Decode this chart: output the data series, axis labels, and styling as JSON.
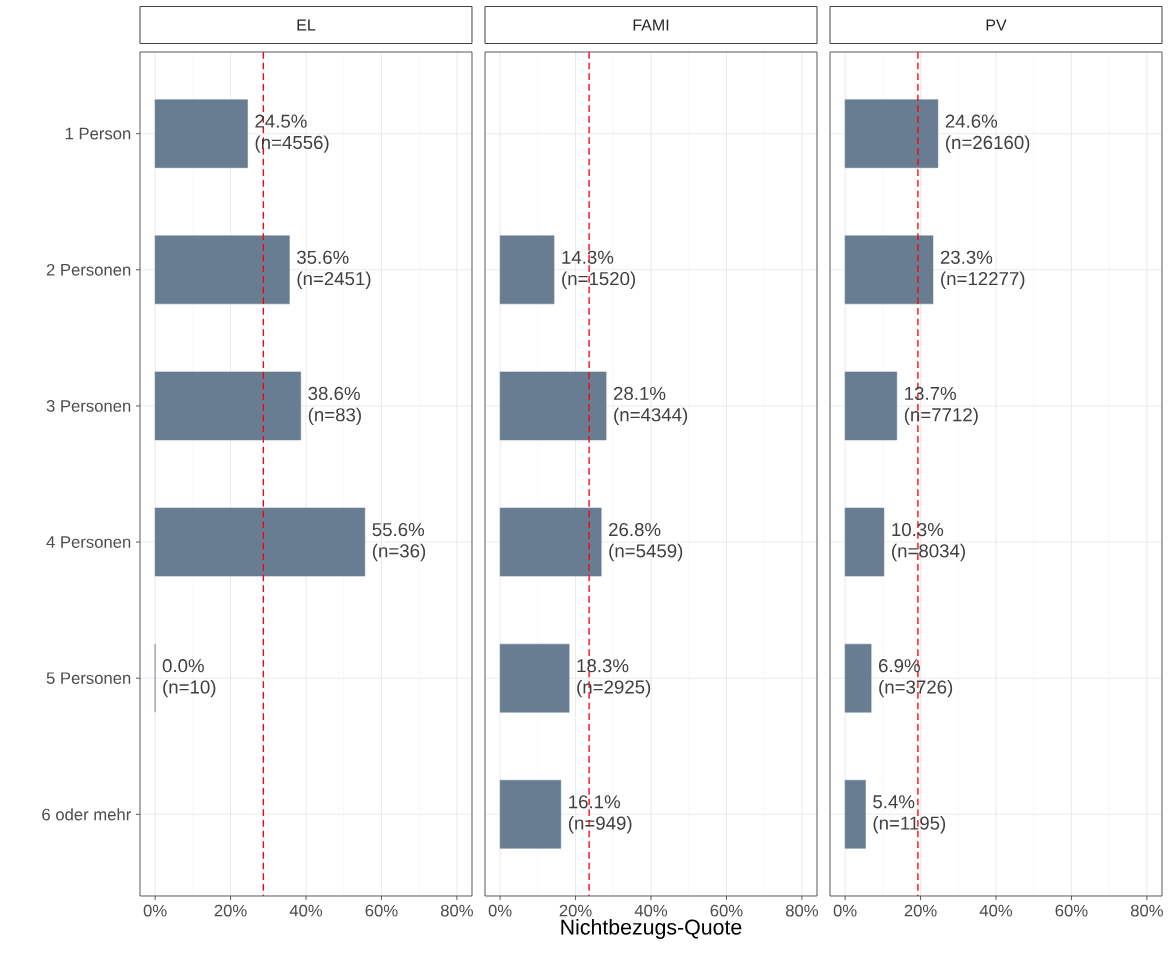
{
  "chart_data": [
    {
      "type": "bar",
      "orientation": "horizontal",
      "title": "EL",
      "categories": [
        "1 Person",
        "2 Personen",
        "3 Personen",
        "4 Personen",
        "5 Personen",
        "6 oder mehr"
      ],
      "values": [
        24.5,
        35.6,
        38.6,
        55.6,
        0.0,
        null
      ],
      "color": "#687d91",
      "value_labels": [
        "24.5% (n=4556)",
        "35.6% (n=2451)",
        "38.6% (n=83)",
        "55.6% (n=36)",
        "0.0% (n=10)",
        null
      ],
      "xlim": [
        -4,
        84
      ],
      "xticks": [
        {
          "value": 0,
          "label": "0%"
        },
        {
          "value": 20,
          "label": "20%"
        },
        {
          "value": 40,
          "label": "40%"
        },
        {
          "value": 60,
          "label": "60%"
        },
        {
          "value": 80,
          "label": "80%"
        }
      ],
      "ref_lines": [
        {
          "axis": "x",
          "value": 28.7,
          "color": "#ff0000",
          "line_style": "dashed"
        }
      ],
      "grid": true
    },
    {
      "type": "bar",
      "orientation": "horizontal",
      "title": "FAMI",
      "xlabel": "Nichtbezugs-Quote",
      "categories": [
        null,
        null,
        null,
        null,
        null,
        null
      ],
      "values": [
        null,
        14.3,
        28.1,
        26.8,
        18.3,
        16.1
      ],
      "color": "#687d91",
      "value_labels": [
        null,
        "14.3% (n=1520)",
        "28.1% (n=4344)",
        "26.8% (n=5459)",
        "18.3% (n=2925)",
        "16.1% (n=949)"
      ],
      "xlim": [
        -4,
        84
      ],
      "xticks": [
        {
          "value": 0,
          "label": "0%"
        },
        {
          "value": 20,
          "label": "20%"
        },
        {
          "value": 40,
          "label": "40%"
        },
        {
          "value": 60,
          "label": "60%"
        },
        {
          "value": 80,
          "label": "80%"
        }
      ],
      "ref_lines": [
        {
          "axis": "x",
          "value": 23.6,
          "color": "#ff0000",
          "line_style": "dashed"
        }
      ],
      "grid": true,
      "tick_labels": "x"
    },
    {
      "type": "bar",
      "orientation": "horizontal",
      "title": "PV",
      "categories": [
        null,
        null,
        null,
        null,
        null,
        null
      ],
      "values": [
        24.6,
        23.3,
        13.7,
        10.3,
        6.9,
        5.4
      ],
      "color": "#687d91",
      "value_labels": [
        "24.6% (n=26160)",
        "23.3% (n=12277)",
        "13.7% (n=7712)",
        "10.3% (n=8034)",
        "6.9% (n=3726)",
        "5.4% (n=1195)"
      ],
      "xlim": [
        -4,
        84
      ],
      "xticks": [
        {
          "value": 0,
          "label": "0%"
        },
        {
          "value": 20,
          "label": "20%"
        },
        {
          "value": 40,
          "label": "40%"
        },
        {
          "value": 60,
          "label": "60%"
        },
        {
          "value": 80,
          "label": "80%"
        }
      ],
      "ref_lines": [
        {
          "axis": "x",
          "value": 19.3,
          "color": "#ff0000",
          "line_style": "dashed"
        }
      ],
      "grid": true,
      "tick_labels": "x"
    }
  ]
}
